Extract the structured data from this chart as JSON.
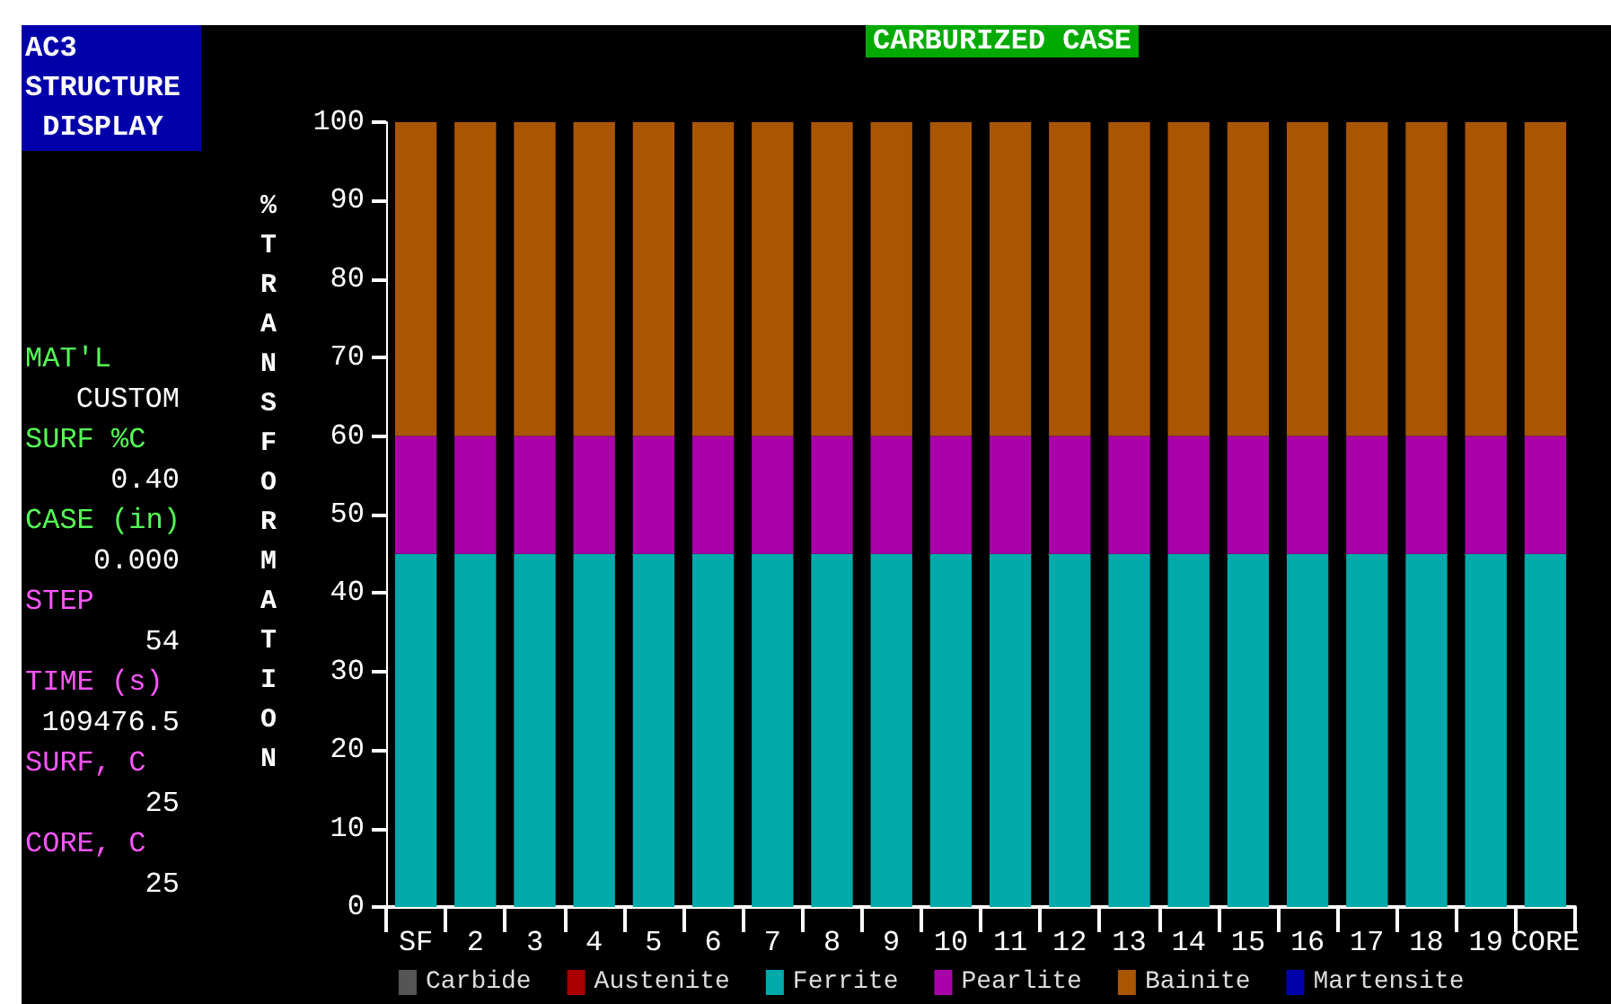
{
  "chart_data": {
    "type": "bar",
    "stacked": true,
    "title": "CARBURIZED CASE",
    "subtitle": "AC3 STRUCTURE DISPLAY",
    "ylabel": "% TRANSFORMATION",
    "categories": [
      "SF",
      "2",
      "3",
      "4",
      "5",
      "6",
      "7",
      "8",
      "9",
      "10",
      "11",
      "12",
      "13",
      "14",
      "15",
      "16",
      "17",
      "18",
      "19",
      "CORE"
    ],
    "series": [
      {
        "name": "Carbide",
        "color": "#555555",
        "values": [
          0,
          0,
          0,
          0,
          0,
          0,
          0,
          0,
          0,
          0,
          0,
          0,
          0,
          0,
          0,
          0,
          0,
          0,
          0,
          0
        ]
      },
      {
        "name": "Austenite",
        "color": "#aa0000",
        "values": [
          0,
          0,
          0,
          0,
          0,
          0,
          0,
          0,
          0,
          0,
          0,
          0,
          0,
          0,
          0,
          0,
          0,
          0,
          0,
          0
        ]
      },
      {
        "name": "Ferrite",
        "color": "#00aaaa",
        "values": [
          45,
          45,
          45,
          45,
          45,
          45,
          45,
          45,
          45,
          45,
          45,
          45,
          45,
          45,
          45,
          45,
          45,
          45,
          45,
          45
        ]
      },
      {
        "name": "Pearlite",
        "color": "#aa00aa",
        "values": [
          15,
          15,
          15,
          15,
          15,
          15,
          15,
          15,
          15,
          15,
          15,
          15,
          15,
          15,
          15,
          15,
          15,
          15,
          15,
          15
        ]
      },
      {
        "name": "Bainite",
        "color": "#aa5500",
        "values": [
          40,
          40,
          40,
          40,
          40,
          40,
          40,
          40,
          40,
          40,
          40,
          40,
          40,
          40,
          40,
          40,
          40,
          40,
          40,
          40
        ]
      },
      {
        "name": "Martensite",
        "color": "#0000aa",
        "values": [
          0,
          0,
          0,
          0,
          0,
          0,
          0,
          0,
          0,
          0,
          0,
          0,
          0,
          0,
          0,
          0,
          0,
          0,
          0,
          0
        ]
      }
    ],
    "ylim": [
      0,
      100
    ],
    "yticks": [
      0,
      10,
      20,
      30,
      40,
      50,
      60,
      70,
      80,
      90,
      100
    ],
    "grid": false,
    "legend": "bottom",
    "annotations": [
      "MAT'L",
      "CUSTOM",
      "SURF %C",
      "0.40",
      "CASE (in)",
      "0.000",
      "STEP",
      "54",
      "TIME (s)",
      "109476.5",
      "SURF, C",
      "25",
      "CORE, C",
      "25"
    ]
  }
}
